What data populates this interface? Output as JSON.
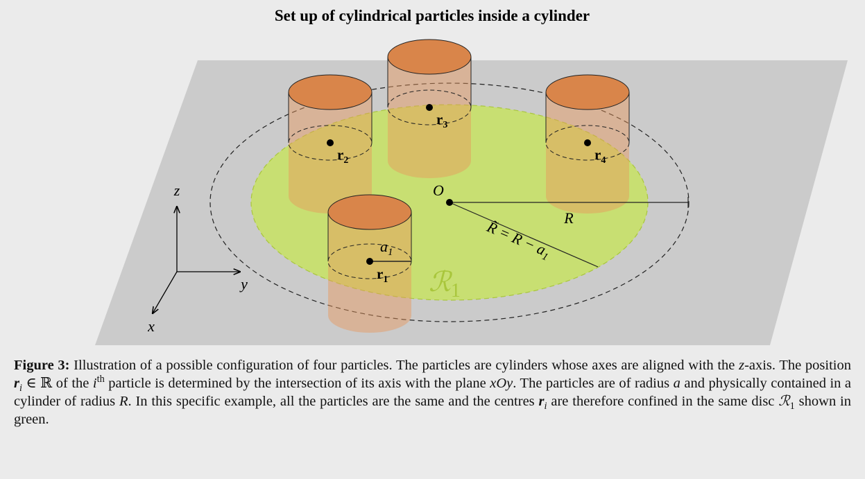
{
  "figure": {
    "title": "Set up of cylindrical particles inside a cylinder",
    "labels": {
      "z": "z",
      "y": "y",
      "x": "x",
      "O": "O",
      "R": "R",
      "R_tilde": {
        "text": "R̃ = R − a",
        "sub": "1"
      },
      "a1": {
        "text": "a",
        "sub": "1"
      },
      "region": {
        "text": "ℛ",
        "sub": "1"
      },
      "particles": [
        {
          "text": "r",
          "sub": "1"
        },
        {
          "text": "r",
          "sub": "2"
        },
        {
          "text": "r",
          "sub": "3"
        },
        {
          "text": "r",
          "sub": "4"
        }
      ]
    },
    "caption": {
      "label": "Figure 3:",
      "segments": [
        " Illustration of a possible configuration of four particles. The particles are cylinders whose axes are aligned with the ",
        "z",
        "-axis. The position ",
        "r",
        "i",
        " ∈ ℝ of the ",
        "i",
        "th",
        " particle is determined by the intersection of its axis with the plane ",
        "xOy",
        ". The particles are of radius ",
        "a",
        " and physically contained in a cylinder of radius ",
        "R",
        ". In this specific example, all the particles are the same and the centres ",
        "r",
        "i",
        " are therefore confined in the same disc ",
        "ℛ",
        "1",
        " shown in green."
      ]
    }
  }
}
